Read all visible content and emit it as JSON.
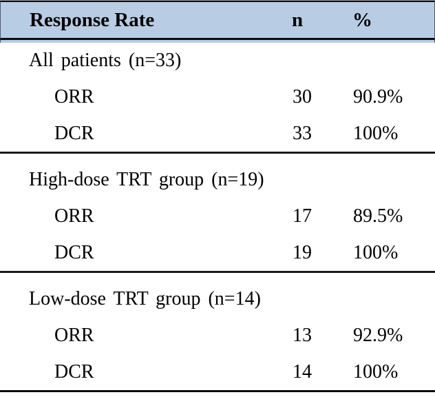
{
  "header": {
    "col_label": "Response Rate",
    "col_n": "n",
    "col_pct": "%"
  },
  "colors": {
    "header_bg": "#b8cce4",
    "rule": "#1a1a1a"
  },
  "sections": [
    {
      "label": "All patients (n=33)",
      "rows": [
        {
          "name": "ORR",
          "n": "30",
          "pct": "90.9%"
        },
        {
          "name": "DCR",
          "n": "33",
          "pct": "100%"
        }
      ]
    },
    {
      "label": "High-dose TRT group (n=19)",
      "rows": [
        {
          "name": "ORR",
          "n": "17",
          "pct": "89.5%"
        },
        {
          "name": "DCR",
          "n": "19",
          "pct": "100%"
        }
      ]
    },
    {
      "label": "Low-dose TRT group (n=14)",
      "rows": [
        {
          "name": "ORR",
          "n": "13",
          "pct": "92.9%"
        },
        {
          "name": "DCR",
          "n": "14",
          "pct": "100%"
        }
      ]
    }
  ]
}
